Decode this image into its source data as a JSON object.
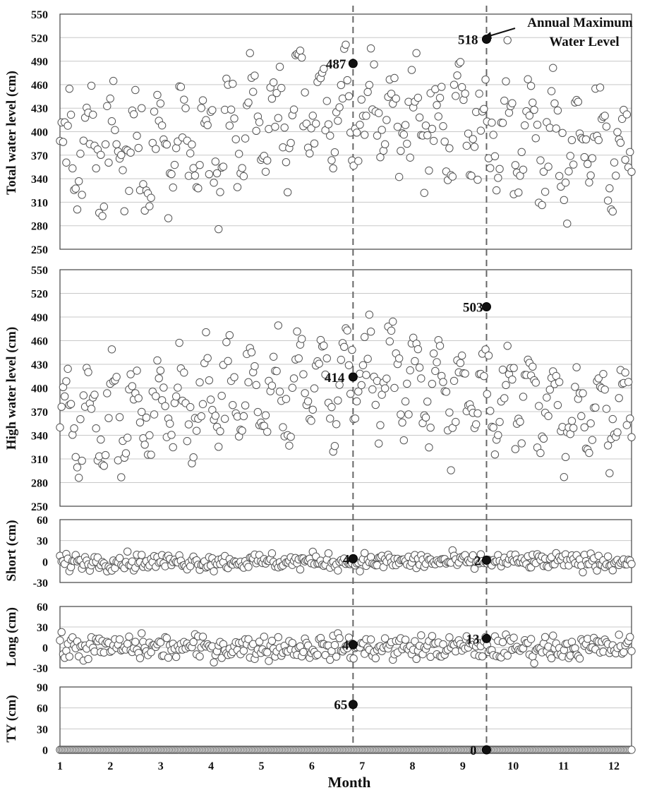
{
  "chart_data": {
    "type": "scatter",
    "xlabel": "Month",
    "x_ticks": [
      "1",
      "2",
      "3",
      "4",
      "5",
      "6",
      "7",
      "8",
      "9",
      "10",
      "11",
      "12"
    ],
    "xlim": [
      1,
      12.35
    ],
    "dashed_lines_x": [
      6.82,
      9.47
    ],
    "annotation_text": "Annual Maximum Water Level",
    "annotation_lines": [
      "Annual Maximum",
      "Water Level"
    ],
    "colors": {
      "marker_face": "#ffffff",
      "marker_edge": "#555555",
      "highlight": "#111111",
      "grid": "#c8c8c8",
      "dash": "#666666"
    },
    "panels": [
      {
        "ylabel": "Total water level (cm)",
        "ylim": [
          250,
          550
        ],
        "yticks": [
          250,
          280,
          310,
          340,
          370,
          400,
          430,
          460,
          490,
          520,
          550
        ],
        "baseline": 395,
        "amplitude": 48,
        "seasonal": 25,
        "noise": 28,
        "highlights": [
          {
            "x": 6.82,
            "y": 487,
            "label": "487"
          },
          {
            "x": 9.47,
            "y": 518,
            "label": "518"
          }
        ]
      },
      {
        "ylabel": "High water level (cm)",
        "ylim": [
          250,
          550
        ],
        "yticks": [
          250,
          280,
          310,
          340,
          370,
          400,
          430,
          460,
          490,
          520,
          550
        ],
        "baseline": 385,
        "amplitude": 50,
        "seasonal": 25,
        "noise": 22,
        "highlights": [
          {
            "x": 6.82,
            "y": 414,
            "label": "414"
          },
          {
            "x": 9.47,
            "y": 503,
            "label": "503"
          }
        ]
      },
      {
        "ylabel": "Short (cm)",
        "ylim": [
          -30,
          60
        ],
        "yticks": [
          -30,
          0,
          30,
          60
        ],
        "baseline": 0,
        "amplitude": 0,
        "seasonal": 0,
        "noise": 6,
        "highlights": [
          {
            "x": 6.82,
            "y": 4,
            "label": "4"
          },
          {
            "x": 9.47,
            "y": 2,
            "label": "2"
          }
        ]
      },
      {
        "ylabel": "Long (cm)",
        "ylim": [
          -30,
          60
        ],
        "yticks": [
          -30,
          0,
          30,
          60
        ],
        "baseline": 0,
        "amplitude": 0,
        "seasonal": 0,
        "noise": 9,
        "highlights": [
          {
            "x": 6.82,
            "y": 4,
            "label": "4"
          },
          {
            "x": 9.47,
            "y": 13,
            "label": "13"
          }
        ]
      },
      {
        "ylabel": "TY (cm)",
        "ylim": [
          0,
          90
        ],
        "yticks": [
          0,
          30,
          60,
          90
        ],
        "baseline": 0,
        "amplitude": 0,
        "seasonal": 0,
        "noise": 0,
        "highlights": [
          {
            "x": 6.82,
            "y": 65,
            "label": "65"
          },
          {
            "x": 9.47,
            "y": 0,
            "label": "0"
          }
        ]
      }
    ]
  }
}
